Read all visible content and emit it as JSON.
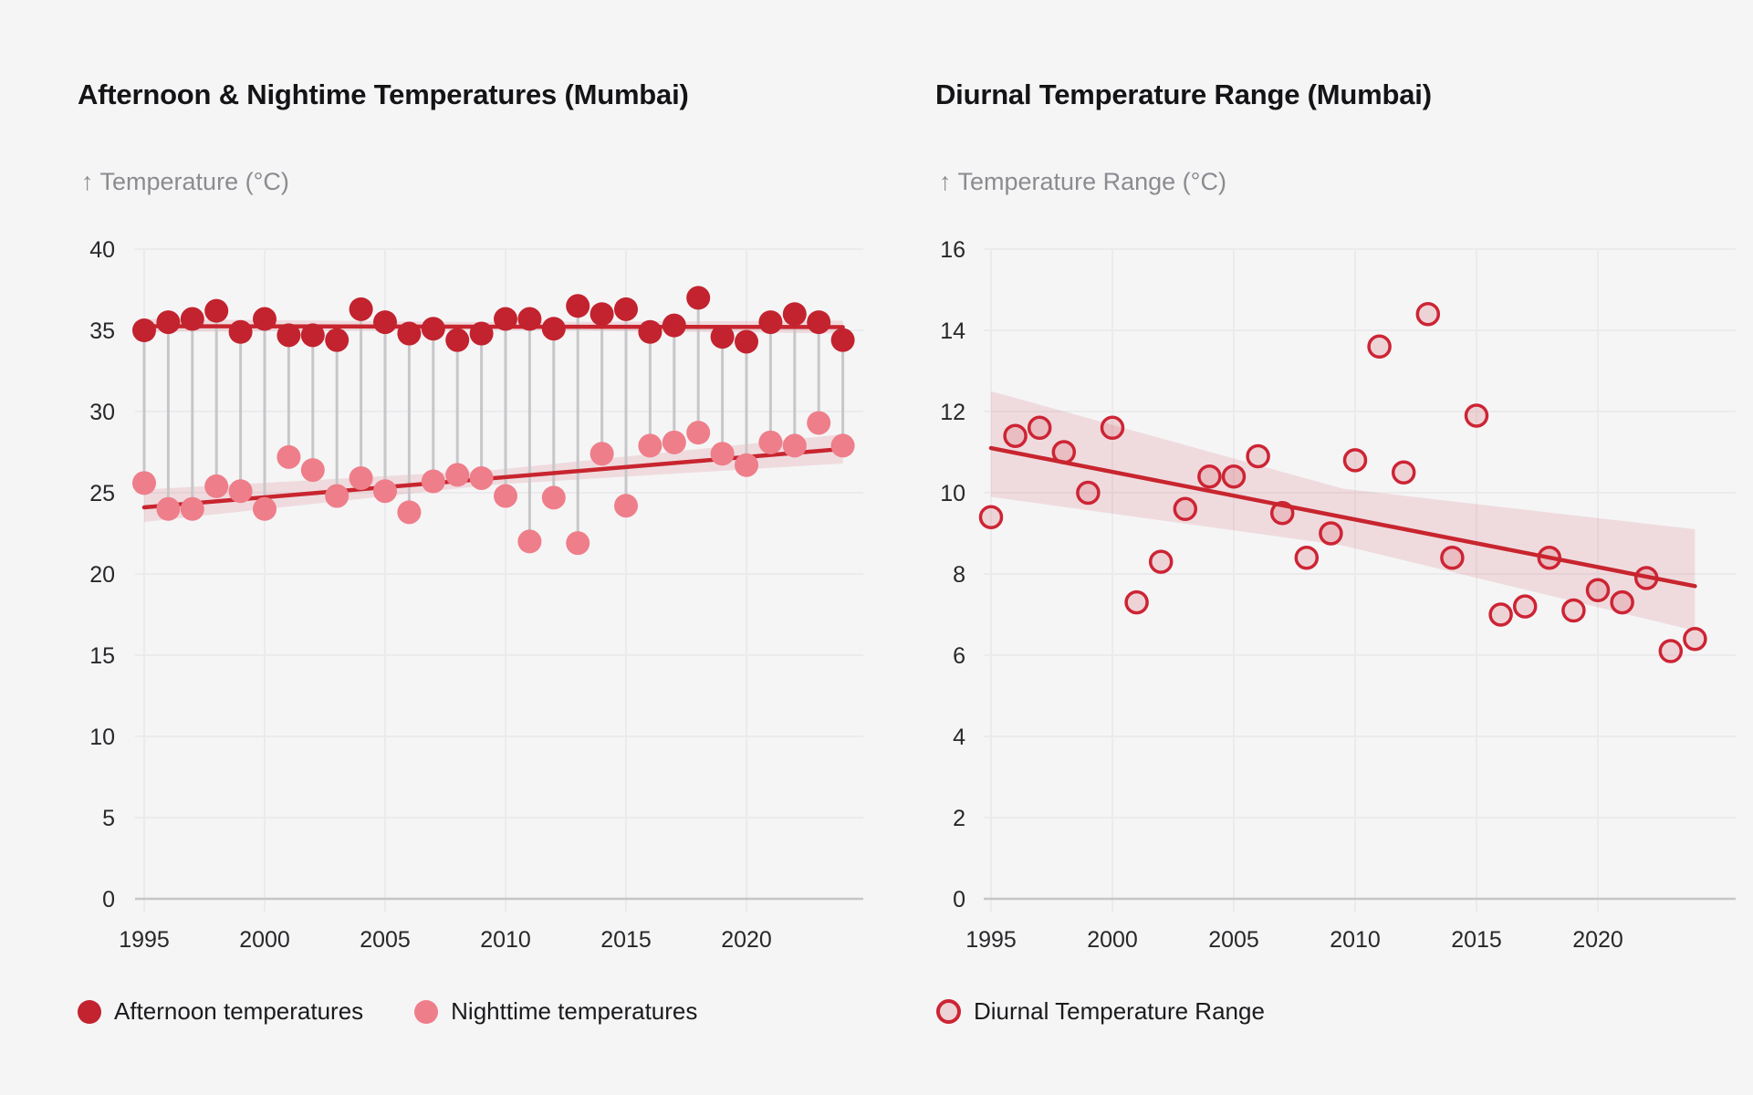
{
  "page": {
    "background": "#f5f5f6"
  },
  "colors": {
    "afternoon_dot": "#c2232e",
    "night_dot": "#ee7e8a",
    "trend_line": "#c8252f",
    "band_fill": "rgba(200,37,47,0.12)",
    "connector": "#c7c7c9",
    "gridline": "#ebebed",
    "zero_line": "#c6c6c8",
    "open_circle_stroke": "#cd2434",
    "open_circle_fill": "rgba(205,36,52,0.16)",
    "title_text": "#141417",
    "axis_label_text": "#8b8b90",
    "tick_text": "#28282b"
  },
  "chart_data": [
    {
      "type": "scatter",
      "title": "Afternoon & Nightime Temperatures (Mumbai)",
      "ylabel": "↑ Temperature (°C)",
      "xlabel": "",
      "xlim": [
        1993.3,
        2025.3
      ],
      "ylim": [
        0,
        40
      ],
      "xticks": [
        1995,
        2000,
        2005,
        2010,
        2015,
        2020
      ],
      "yticks": [
        0,
        5,
        10,
        15,
        20,
        25,
        30,
        35,
        40
      ],
      "grid": true,
      "connectors": true,
      "legend_position": "bottom",
      "x": [
        1995,
        1996,
        1997,
        1998,
        1999,
        2000,
        2001,
        2002,
        2003,
        2004,
        2005,
        2006,
        2007,
        2008,
        2009,
        2010,
        2011,
        2012,
        2013,
        2014,
        2015,
        2016,
        2017,
        2018,
        2019,
        2020,
        2021,
        2022,
        2023,
        2024
      ],
      "series": [
        {
          "name": "Afternoon temperatures",
          "style": "filled",
          "color": "#c2232e",
          "values": [
            35.0,
            35.5,
            35.7,
            36.2,
            34.9,
            35.7,
            34.7,
            34.7,
            34.4,
            36.3,
            35.5,
            34.8,
            35.1,
            34.4,
            34.8,
            35.7,
            35.7,
            35.1,
            36.5,
            36.0,
            36.3,
            34.9,
            35.3,
            37.0,
            34.6,
            34.3,
            35.5,
            36.0,
            35.5,
            34.4
          ]
        },
        {
          "name": "Nighttime temperatures",
          "style": "filled",
          "color": "#ee7e8a",
          "values": [
            25.6,
            24.0,
            24.0,
            25.4,
            25.1,
            24.0,
            27.2,
            26.4,
            24.8,
            25.9,
            25.1,
            23.8,
            25.7,
            26.1,
            25.9,
            24.8,
            22.0,
            24.7,
            21.9,
            27.4,
            24.2,
            27.9,
            28.1,
            28.7,
            27.4,
            26.7,
            28.1,
            27.9,
            29.3,
            27.9
          ]
        }
      ],
      "trends": [
        {
          "series": "Afternoon temperatures",
          "x_start": 1995,
          "x_end": 2024,
          "y_start": 35.25,
          "y_end": 35.2,
          "band_start": [
            34.9,
            35.7
          ],
          "band_mid": [
            35.05,
            35.5
          ],
          "band_end": [
            34.8,
            35.6
          ]
        },
        {
          "series": "Nighttime temperatures",
          "x_start": 1995,
          "x_end": 2024,
          "y_start": 24.1,
          "y_end": 27.7,
          "band_start": [
            23.2,
            25.2
          ],
          "band_mid": [
            25.5,
            26.4
          ],
          "band_end": [
            26.8,
            28.6
          ]
        }
      ],
      "legend": [
        {
          "label": "Afternoon temperatures",
          "marker": "filled",
          "color": "#c2232e"
        },
        {
          "label": "Nighttime temperatures",
          "marker": "filled",
          "color": "#ee7e8a"
        }
      ]
    },
    {
      "type": "scatter",
      "title": "Diurnal Temperature Range (Mumbai)",
      "ylabel": "↑ Temperature Range (°C)",
      "xlabel": "",
      "xlim": [
        1993.8,
        2025.6
      ],
      "ylim": [
        0,
        16
      ],
      "xticks": [
        1995,
        2000,
        2005,
        2010,
        2015,
        2020
      ],
      "yticks": [
        0,
        2,
        4,
        6,
        8,
        10,
        12,
        14,
        16
      ],
      "grid": true,
      "connectors": false,
      "legend_position": "bottom",
      "x": [
        1995,
        1996,
        1997,
        1998,
        1999,
        2000,
        2001,
        2002,
        2003,
        2004,
        2005,
        2006,
        2007,
        2008,
        2009,
        2010,
        2011,
        2012,
        2013,
        2014,
        2015,
        2016,
        2017,
        2018,
        2019,
        2020,
        2021,
        2022,
        2023,
        2024
      ],
      "series": [
        {
          "name": "Diurnal Temperature Range",
          "style": "open",
          "color": "#cd2434",
          "values": [
            9.4,
            11.4,
            11.6,
            11.0,
            10.0,
            11.6,
            7.3,
            8.3,
            9.6,
            10.4,
            10.4,
            10.9,
            9.5,
            8.4,
            9.0,
            10.8,
            13.6,
            10.5,
            14.4,
            8.4,
            11.9,
            7.0,
            7.2,
            8.4,
            7.1,
            7.6,
            7.3,
            7.9,
            6.1,
            6.4
          ]
        }
      ],
      "trends": [
        {
          "series": "Diurnal Temperature Range",
          "x_start": 1995,
          "x_end": 2024,
          "y_start": 11.1,
          "y_end": 7.7,
          "band_start": [
            9.9,
            12.5
          ],
          "band_mid": [
            8.7,
            10.1
          ],
          "band_end": [
            6.6,
            9.1
          ]
        }
      ],
      "legend": [
        {
          "label": "Diurnal Temperature Range",
          "marker": "open",
          "color": "#cd2434"
        }
      ]
    }
  ]
}
